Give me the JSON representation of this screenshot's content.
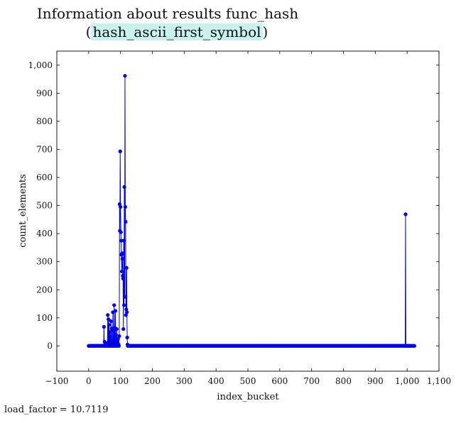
{
  "chart_data": {
    "type": "scatter",
    "title_line1": "Information about results func_hash",
    "title_line2_open": "(",
    "title_line2_highlight": "hash_ascii_first_symbol",
    "title_line2_close": ")",
    "xlabel": "index_bucket",
    "ylabel": "count_elements",
    "xlim": [
      -100,
      1100
    ],
    "ylim": [
      -90,
      1050
    ],
    "xticks": [
      -100,
      0,
      100,
      200,
      300,
      400,
      500,
      600,
      700,
      800,
      900,
      1000,
      1100
    ],
    "xtick_labels": [
      "−100",
      "0",
      "100",
      "200",
      "300",
      "400",
      "500",
      "600",
      "700",
      "800",
      "900",
      "1,000",
      "1,100"
    ],
    "yticks": [
      0,
      100,
      200,
      300,
      400,
      500,
      600,
      700,
      800,
      900,
      1000
    ],
    "ytick_labels": [
      "0",
      "100",
      "200",
      "300",
      "400",
      "500",
      "600",
      "700",
      "800",
      "900",
      "1,000"
    ],
    "grid": false,
    "series_color": "#0000ee",
    "baseline_range": [
      0,
      1023
    ],
    "points": [
      {
        "x": 48,
        "y": 68
      },
      {
        "x": 50,
        "y": 15
      },
      {
        "x": 53,
        "y": 8
      },
      {
        "x": 58,
        "y": 10
      },
      {
        "x": 60,
        "y": 110
      },
      {
        "x": 62,
        "y": 95
      },
      {
        "x": 64,
        "y": 75
      },
      {
        "x": 66,
        "y": 50
      },
      {
        "x": 68,
        "y": 35
      },
      {
        "x": 70,
        "y": 88
      },
      {
        "x": 72,
        "y": 62
      },
      {
        "x": 74,
        "y": 20
      },
      {
        "x": 76,
        "y": 120
      },
      {
        "x": 78,
        "y": 55
      },
      {
        "x": 80,
        "y": 145
      },
      {
        "x": 82,
        "y": 65
      },
      {
        "x": 84,
        "y": 125
      },
      {
        "x": 86,
        "y": 40
      },
      {
        "x": 88,
        "y": 60
      },
      {
        "x": 90,
        "y": 15
      },
      {
        "x": 92,
        "y": 25
      },
      {
        "x": 94,
        "y": 5
      },
      {
        "x": 96,
        "y": 35
      },
      {
        "x": 97,
        "y": 505
      },
      {
        "x": 98,
        "y": 410
      },
      {
        "x": 99,
        "y": 693
      },
      {
        "x": 100,
        "y": 495
      },
      {
        "x": 101,
        "y": 405
      },
      {
        "x": 102,
        "y": 375
      },
      {
        "x": 103,
        "y": 325
      },
      {
        "x": 104,
        "y": 265
      },
      {
        "x": 105,
        "y": 330
      },
      {
        "x": 106,
        "y": 310
      },
      {
        "x": 107,
        "y": 250
      },
      {
        "x": 108,
        "y": 240
      },
      {
        "x": 109,
        "y": 60
      },
      {
        "x": 110,
        "y": 375
      },
      {
        "x": 111,
        "y": 145
      },
      {
        "x": 112,
        "y": 566
      },
      {
        "x": 113,
        "y": 175
      },
      {
        "x": 114,
        "y": 962
      },
      {
        "x": 115,
        "y": 495
      },
      {
        "x": 116,
        "y": 442
      },
      {
        "x": 117,
        "y": 110
      },
      {
        "x": 118,
        "y": 130
      },
      {
        "x": 119,
        "y": 278
      },
      {
        "x": 120,
        "y": 120
      },
      {
        "x": 121,
        "y": 30
      },
      {
        "x": 122,
        "y": 5
      },
      {
        "x": 995,
        "y": 469
      }
    ]
  },
  "footer": {
    "text": "load_factor = 10.7119"
  }
}
